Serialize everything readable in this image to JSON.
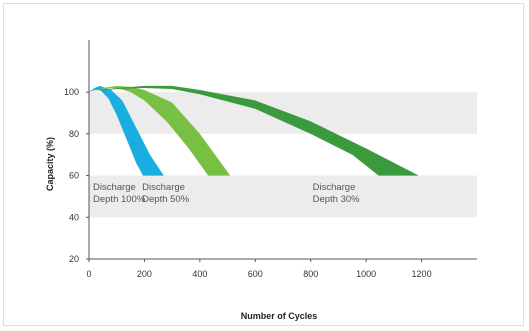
{
  "chart_data": {
    "type": "area",
    "title": "",
    "xlabel": "Number of Cycles",
    "ylabel": "Capacity (%)",
    "xlim": [
      0,
      1400
    ],
    "ylim": [
      20,
      125
    ],
    "xticks": [
      0,
      200,
      400,
      600,
      800,
      1000,
      1200
    ],
    "yticks": [
      20,
      40,
      60,
      80,
      100
    ],
    "shaded_bands": [
      [
        40,
        60
      ],
      [
        80,
        100
      ]
    ],
    "grid": false,
    "series": [
      {
        "annotation": [
          "Discharge",
          "Depth 100%"
        ],
        "color": "#1aaee0",
        "upper": [
          [
            0,
            100
          ],
          [
            20,
            102
          ],
          [
            40,
            103
          ],
          [
            80,
            101
          ],
          [
            120,
            96
          ],
          [
            170,
            83
          ],
          [
            220,
            70
          ],
          [
            270,
            60
          ]
        ],
        "lower": [
          [
            0,
            100
          ],
          [
            20,
            101
          ],
          [
            40,
            101
          ],
          [
            70,
            97
          ],
          [
            100,
            89
          ],
          [
            140,
            76
          ],
          [
            170,
            66
          ],
          [
            195,
            60
          ]
        ]
      },
      {
        "annotation": [
          "Discharge",
          "Depth 50%"
        ],
        "color": "#78c043",
        "upper": [
          [
            0,
            100
          ],
          [
            50,
            102
          ],
          [
            100,
            103
          ],
          [
            150,
            102.5
          ],
          [
            200,
            101
          ],
          [
            300,
            95
          ],
          [
            400,
            80
          ],
          [
            510,
            60
          ]
        ],
        "lower": [
          [
            0,
            100
          ],
          [
            40,
            101.5
          ],
          [
            100,
            102
          ],
          [
            150,
            100
          ],
          [
            200,
            96
          ],
          [
            280,
            86
          ],
          [
            360,
            73
          ],
          [
            430,
            60
          ]
        ]
      },
      {
        "annotation": [
          "Discharge",
          "Depth 30%"
        ],
        "color": "#3b9a3d",
        "upper": [
          [
            0,
            100
          ],
          [
            100,
            102
          ],
          [
            200,
            103
          ],
          [
            300,
            103
          ],
          [
            400,
            101
          ],
          [
            600,
            96
          ],
          [
            800,
            86
          ],
          [
            1000,
            73
          ],
          [
            1190,
            60
          ]
        ],
        "lower": [
          [
            0,
            100
          ],
          [
            100,
            101.5
          ],
          [
            200,
            102
          ],
          [
            300,
            101.5
          ],
          [
            400,
            99
          ],
          [
            600,
            92
          ],
          [
            800,
            80
          ],
          [
            950,
            70
          ],
          [
            1045,
            60
          ]
        ]
      }
    ]
  }
}
